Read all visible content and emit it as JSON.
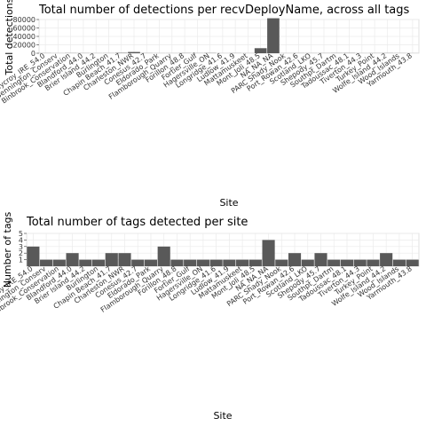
{
  "colors": {
    "bar": "#595959",
    "grid": "#ebebeb",
    "panel_border": "#d9d9d9"
  },
  "chart_data": [
    {
      "type": "bar",
      "title": "Total number of detections per recvDeployName, across all tags",
      "xlabel": "Site",
      "ylabel": "Total detections",
      "ylim": [
        0,
        80000
      ],
      "yticks": [
        "0",
        "20000",
        "40000",
        "60000",
        "80000"
      ],
      "grid": true,
      "categories": [
        "Ballycroy_IRE_54.0",
        "Bennington_Conserv",
        "Binbrook_Conservation",
        "Blandford_44.0",
        "Brier Island_44.2",
        "Burlington",
        "Chapin Beach_41.7",
        "Charleston_NWR",
        "Conesus_42.7",
        "Eldorado_Park",
        "Flamborough_Quarry",
        "Forillon_48.8",
        "Fortier_Gulf",
        "Hagersville_ON",
        "Longridge_41.6",
        "Ludlow_41.9",
        "Mattamuskeet",
        "Mont_Joli_48.5",
        "NA_NA_NA",
        "PARC Shady_Nook",
        "Port_Rowan_42.6",
        "Scotland_LKO",
        "Shepody_45.7",
        "Southpt_Dartm",
        "Tadoussac_48.1",
        "Tiverton_44.3",
        "Turkey_Point",
        "Wolfe_Island_44.2",
        "Wood_Islands",
        "Yarmouth_43.8"
      ],
      "values": [
        300,
        200,
        400,
        300,
        200,
        250,
        800,
        3000,
        300,
        200,
        200,
        400,
        300,
        500,
        150,
        300,
        200,
        12000,
        83000,
        200,
        300,
        250,
        300,
        400,
        500,
        200,
        300,
        400,
        300,
        200
      ]
    },
    {
      "type": "bar",
      "title": "Total number of tags detected per site",
      "xlabel": "Site",
      "ylabel": "Number of tags",
      "ylim": [
        0,
        5
      ],
      "yticks": [
        "1",
        "2",
        "3",
        "4",
        "5"
      ],
      "grid": true,
      "categories": [
        "Ballycroy_IRE_54.0",
        "Bennington_Conserv",
        "Binbrook_Conservation",
        "Blandford_44.0",
        "Brier Island_44.2",
        "Burlington",
        "Chapin Beach_41.7",
        "Charleston_NWR",
        "Conesus_42.7",
        "Eldorado_Park",
        "Flamborough_Quarry",
        "Forillon_48.8",
        "Fortier_Gulf",
        "Hagersville_ON",
        "Longridge_41.6",
        "Ludlow_41.9",
        "Mattamuskeet",
        "Mont_Joli_48.5",
        "NA_NA_NA",
        "PARC Shady_Nook",
        "Port_Rowan_42.6",
        "Scotland_LKO",
        "Shepody_45.7",
        "Southpt_Dartm",
        "Tadoussac_48.1",
        "Tiverton_44.3",
        "Turkey_Point",
        "Wolfe_Island_44.2",
        "Wood_Islands",
        "Yarmouth_43.8"
      ],
      "values": [
        3,
        1,
        1,
        2,
        1,
        1,
        2,
        2,
        1,
        1,
        3,
        1,
        1,
        1,
        1,
        1,
        1,
        1,
        4,
        1,
        2,
        1,
        2,
        1,
        1,
        1,
        1,
        2,
        1,
        1
      ]
    }
  ]
}
